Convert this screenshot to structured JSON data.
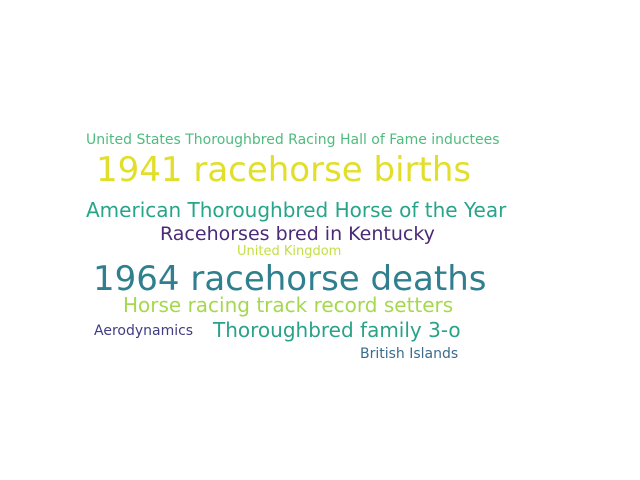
{
  "words": [
    {
      "text": "United States Thoroughbred Racing Hall of Fame inductees",
      "color": "#4fbb7e"
    },
    {
      "text": "1941 racehorse births",
      "color": "#e1df2a"
    },
    {
      "text": "American Thoroughbred Horse of the Year",
      "color": "#26a58a"
    },
    {
      "text": "Racehorses bred in Kentucky",
      "color": "#4b2a78"
    },
    {
      "text": "United Kingdom",
      "color": "#c2df45"
    },
    {
      "text": "1964 racehorse deaths",
      "color": "#2f7f8e"
    },
    {
      "text": "Horse racing track record setters",
      "color": "#a6d84f"
    },
    {
      "text": "Aerodynamics",
      "color": "#3f3d82"
    },
    {
      "text": "Thoroughbred family 3-o",
      "color": "#2aa28a"
    },
    {
      "text": "British Islands",
      "color": "#3b6b8e"
    }
  ]
}
